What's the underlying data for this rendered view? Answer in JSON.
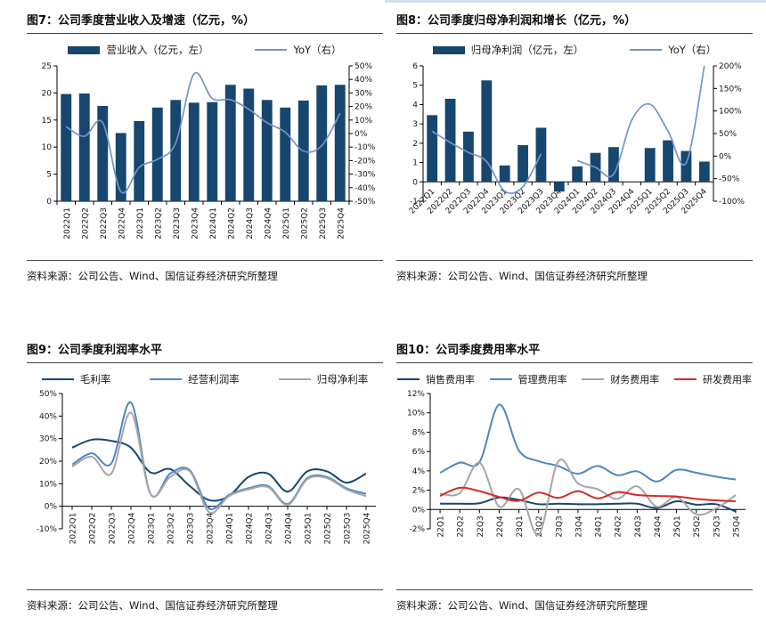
{
  "source_note": "资料来源：公司公告、Wind、国信证券经济研究所整理",
  "chart_data": [
    {
      "id": "fig7",
      "type": "combo-bar-line",
      "title": "图7：公司季度营业收入及增速（亿元，%）",
      "categories": [
        "2022Q1",
        "2022Q2",
        "2022Q3",
        "2022Q4",
        "2023Q1",
        "2023Q2",
        "2023Q3",
        "2023Q4",
        "2024Q1",
        "2024Q2",
        "2024Q3",
        "2024Q4",
        "2025Q1",
        "2025Q2",
        "2025Q3",
        "2025Q4"
      ],
      "x_label_style": "vertical",
      "bar_series": {
        "name": "营业收入（亿元，左）",
        "color": "#17466F",
        "values": [
          19.8,
          19.9,
          17.6,
          12.6,
          14.8,
          17.3,
          18.7,
          18.2,
          18.3,
          21.5,
          20.8,
          18.7,
          17.3,
          18.6,
          21.4,
          21.5
        ]
      },
      "line_series": {
        "name": "YoY（右）",
        "color": "#7096C8",
        "values": [
          5,
          -2,
          8,
          -43,
          -25,
          -19,
          -7,
          44,
          26,
          25,
          18,
          8,
          1,
          -13,
          -9,
          15
        ]
      },
      "left_axis": {
        "min": 0,
        "max": 25,
        "ticks": [
          0,
          5,
          10,
          15,
          20,
          25
        ],
        "format": "num"
      },
      "right_axis": {
        "min": -50,
        "max": 50,
        "ticks": [
          -50,
          -40,
          -30,
          -20,
          -10,
          0,
          10,
          20,
          30,
          40,
          50
        ],
        "format": "pct"
      }
    },
    {
      "id": "fig8",
      "type": "combo-bar-line",
      "title": "图8：公司季度归母净利润和增长（亿元，%）",
      "categories": [
        "2022Q1",
        "2022Q2",
        "2022Q3",
        "2022Q4",
        "2023Q1",
        "2023Q2",
        "2023Q3",
        "2023Q4",
        "2024Q1",
        "2024Q2",
        "2024Q3",
        "2024Q4",
        "2025Q1",
        "2025Q2",
        "2025Q3",
        "2025Q4"
      ],
      "x_label_style": "slanted",
      "bar_series": {
        "name": "归母净利润（亿元，左）",
        "color": "#17466F",
        "values": [
          3.45,
          4.3,
          2.6,
          5.25,
          0.85,
          1.9,
          2.8,
          -0.5,
          0.8,
          1.5,
          1.8,
          null,
          1.75,
          2.15,
          1.6,
          1.05
        ]
      },
      "line_series": {
        "name": "YoY（右）",
        "color": "#7096C8",
        "values": [
          55,
          30,
          8,
          -12,
          -78,
          -68,
          5,
          null,
          -10,
          -25,
          -40,
          80,
          115,
          55,
          -15,
          200
        ]
      },
      "left_axis": {
        "min": -1,
        "max": 6,
        "ticks": [
          -1,
          0,
          1,
          2,
          3,
          4,
          5,
          6
        ],
        "format": "num"
      },
      "right_axis": {
        "min": -100,
        "max": 200,
        "ticks": [
          -100,
          -50,
          0,
          50,
          100,
          150,
          200
        ],
        "format": "pct"
      }
    },
    {
      "id": "fig9",
      "type": "line",
      "title": "图9：公司季度利润率水平",
      "categories": [
        "2022Q1",
        "2022Q2",
        "2022Q3",
        "2022Q4",
        "2023Q1",
        "2023Q2",
        "2023Q3",
        "2023Q4",
        "2024Q1",
        "2024Q2",
        "2024Q3",
        "2024Q4",
        "2025Q1",
        "2025Q2",
        "2025Q3",
        "2025Q4"
      ],
      "x_label_style": "vertical",
      "series": [
        {
          "name": "毛利率",
          "color": "#17466F",
          "values": [
            26,
            29.5,
            29,
            26,
            15,
            16.5,
            9,
            2.7,
            4.5,
            13,
            14.5,
            6.5,
            15.5,
            15.5,
            10.5,
            14.5
          ]
        },
        {
          "name": "经营利润率",
          "color": "#4D86C4",
          "values": [
            18.5,
            23.5,
            19,
            46,
            5.5,
            14.5,
            16,
            -1,
            5,
            8,
            9,
            1,
            12.5,
            13,
            8,
            5.5
          ]
        },
        {
          "name": "归母净利率",
          "color": "#A6A6A6",
          "values": [
            17.5,
            22,
            14.5,
            41.5,
            5.5,
            13,
            15.5,
            -2.7,
            4.5,
            7.5,
            8.5,
            0.6,
            12,
            12.5,
            7.5,
            4.5
          ]
        }
      ],
      "y_axis": {
        "min": -10,
        "max": 50,
        "ticks": [
          -10,
          0,
          10,
          20,
          30,
          40,
          50
        ],
        "format": "pct"
      }
    },
    {
      "id": "fig10",
      "type": "line",
      "title": "图10：公司季度费用率水平",
      "categories": [
        "22Q1",
        "22Q2",
        "22Q3",
        "22Q4",
        "23Q1",
        "23Q2",
        "23Q3",
        "23Q4",
        "24Q1",
        "24Q2",
        "24Q3",
        "24Q4",
        "25Q1",
        "25Q2",
        "25Q3",
        "25Q4"
      ],
      "x_label_style": "vertical",
      "series": [
        {
          "name": "销售费用率",
          "color": "#17466F",
          "values": [
            0.6,
            0.6,
            0.65,
            1.25,
            1.0,
            0.55,
            0.6,
            0.55,
            0.55,
            0.6,
            0.6,
            0.15,
            0.85,
            0.5,
            0.55,
            -0.2
          ]
        },
        {
          "name": "管理费用率",
          "color": "#4D86C4",
          "values": [
            3.8,
            4.85,
            4.9,
            10.85,
            6.1,
            5.0,
            4.5,
            3.7,
            4.5,
            3.55,
            3.95,
            2.9,
            4.1,
            3.8,
            3.4,
            3.1
          ]
        },
        {
          "name": "财务费用率",
          "color": "#A6A6A6",
          "values": [
            1.65,
            1.7,
            4.85,
            0.3,
            2.1,
            -2.6,
            5.0,
            2.7,
            2.1,
            1.1,
            2.4,
            0.3,
            1.3,
            -0.5,
            0.1,
            1.5
          ]
        },
        {
          "name": "研发费用率",
          "color": "#D42B2B",
          "values": [
            1.4,
            2.25,
            1.9,
            1.3,
            0.9,
            1.75,
            1.2,
            1.9,
            1.15,
            1.8,
            1.5,
            1.4,
            1.35,
            1.1,
            0.95,
            0.85
          ]
        }
      ],
      "y_axis": {
        "min": -2,
        "max": 12,
        "ticks": [
          -2,
          0,
          2,
          4,
          6,
          8,
          10,
          12
        ],
        "format": "pct"
      }
    }
  ]
}
